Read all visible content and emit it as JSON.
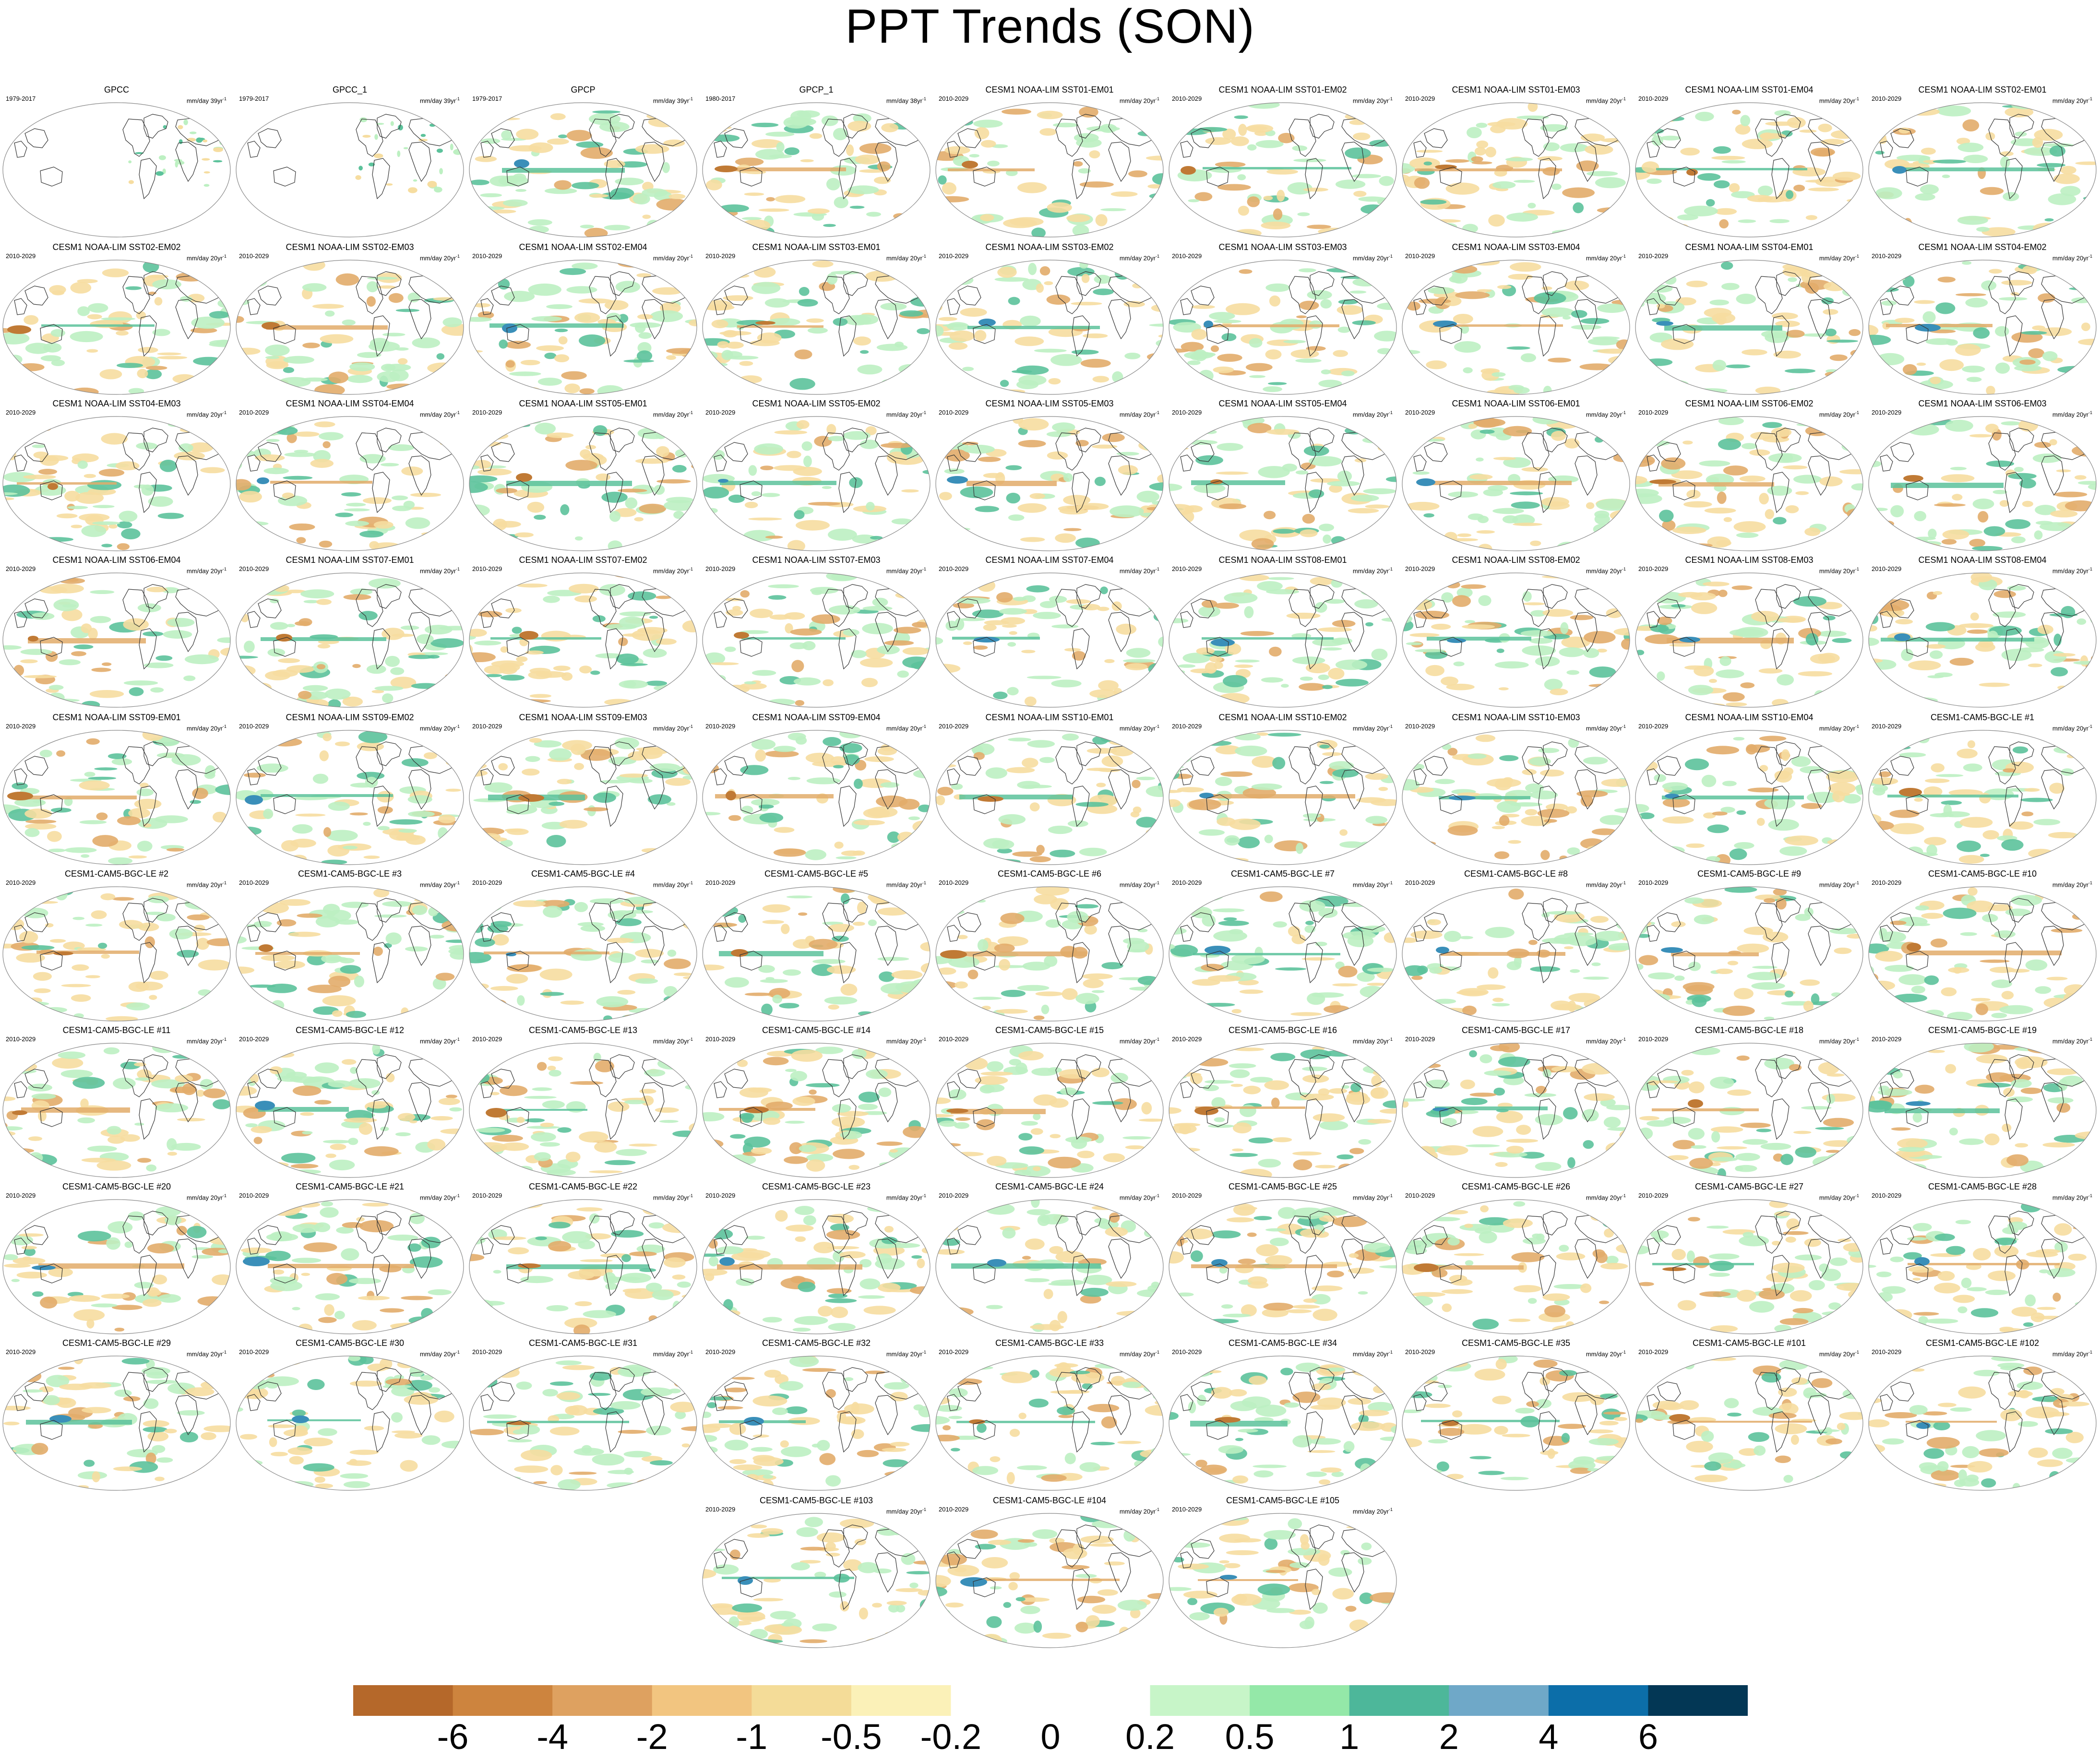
{
  "title": "PPT Trends (SON)",
  "chart_data": {
    "type": "map-panels",
    "variable": "precipitation trend",
    "season": "SON",
    "panels": [
      {
        "title": "GPCC",
        "period": "1979-2017",
        "units": "mm/day 39yr",
        "units_exp": "-1",
        "land_only": true
      },
      {
        "title": "GPCC_1",
        "period": "1979-2017",
        "units": "mm/day 39yr",
        "units_exp": "-1",
        "land_only": true
      },
      {
        "title": "GPCP",
        "period": "1979-2017",
        "units": "mm/day 39yr",
        "units_exp": "-1"
      },
      {
        "title": "GPCP_1",
        "period": "1980-2017",
        "units": "mm/day 38yr",
        "units_exp": "-1"
      },
      {
        "title": "CESM1 NOAA-LIM SST01-EM01",
        "period": "2010-2029",
        "units": "mm/day 20yr",
        "units_exp": "-1"
      },
      {
        "title": "CESM1 NOAA-LIM SST01-EM02",
        "period": "2010-2029",
        "units": "mm/day 20yr",
        "units_exp": "-1"
      },
      {
        "title": "CESM1 NOAA-LIM SST01-EM03",
        "period": "2010-2029",
        "units": "mm/day 20yr",
        "units_exp": "-1"
      },
      {
        "title": "CESM1 NOAA-LIM SST01-EM04",
        "period": "2010-2029",
        "units": "mm/day 20yr",
        "units_exp": "-1"
      },
      {
        "title": "CESM1 NOAA-LIM SST02-EM01",
        "period": "2010-2029",
        "units": "mm/day 20yr",
        "units_exp": "-1"
      },
      {
        "title": "CESM1 NOAA-LIM SST02-EM02",
        "period": "2010-2029",
        "units": "mm/day 20yr",
        "units_exp": "-1"
      },
      {
        "title": "CESM1 NOAA-LIM SST02-EM03",
        "period": "2010-2029",
        "units": "mm/day 20yr",
        "units_exp": "-1"
      },
      {
        "title": "CESM1 NOAA-LIM SST02-EM04",
        "period": "2010-2029",
        "units": "mm/day 20yr",
        "units_exp": "-1"
      },
      {
        "title": "CESM1 NOAA-LIM SST03-EM01",
        "period": "2010-2029",
        "units": "mm/day 20yr",
        "units_exp": "-1"
      },
      {
        "title": "CESM1 NOAA-LIM SST03-EM02",
        "period": "2010-2029",
        "units": "mm/day 20yr",
        "units_exp": "-1"
      },
      {
        "title": "CESM1 NOAA-LIM SST03-EM03",
        "period": "2010-2029",
        "units": "mm/day 20yr",
        "units_exp": "-1"
      },
      {
        "title": "CESM1 NOAA-LIM SST03-EM04",
        "period": "2010-2029",
        "units": "mm/day 20yr",
        "units_exp": "-1"
      },
      {
        "title": "CESM1 NOAA-LIM SST04-EM01",
        "period": "2010-2029",
        "units": "mm/day 20yr",
        "units_exp": "-1"
      },
      {
        "title": "CESM1 NOAA-LIM SST04-EM02",
        "period": "2010-2029",
        "units": "mm/day 20yr",
        "units_exp": "-1"
      },
      {
        "title": "CESM1 NOAA-LIM SST04-EM03",
        "period": "2010-2029",
        "units": "mm/day 20yr",
        "units_exp": "-1"
      },
      {
        "title": "CESM1 NOAA-LIM SST04-EM04",
        "period": "2010-2029",
        "units": "mm/day 20yr",
        "units_exp": "-1"
      },
      {
        "title": "CESM1 NOAA-LIM SST05-EM01",
        "period": "2010-2029",
        "units": "mm/day 20yr",
        "units_exp": "-1"
      },
      {
        "title": "CESM1 NOAA-LIM SST05-EM02",
        "period": "2010-2029",
        "units": "mm/day 20yr",
        "units_exp": "-1"
      },
      {
        "title": "CESM1 NOAA-LIM SST05-EM03",
        "period": "2010-2029",
        "units": "mm/day 20yr",
        "units_exp": "-1"
      },
      {
        "title": "CESM1 NOAA-LIM SST05-EM04",
        "period": "2010-2029",
        "units": "mm/day 20yr",
        "units_exp": "-1"
      },
      {
        "title": "CESM1 NOAA-LIM SST06-EM01",
        "period": "2010-2029",
        "units": "mm/day 20yr",
        "units_exp": "-1"
      },
      {
        "title": "CESM1 NOAA-LIM SST06-EM02",
        "period": "2010-2029",
        "units": "mm/day 20yr",
        "units_exp": "-1"
      },
      {
        "title": "CESM1 NOAA-LIM SST06-EM03",
        "period": "2010-2029",
        "units": "mm/day 20yr",
        "units_exp": "-1"
      },
      {
        "title": "CESM1 NOAA-LIM SST06-EM04",
        "period": "2010-2029",
        "units": "mm/day 20yr",
        "units_exp": "-1"
      },
      {
        "title": "CESM1 NOAA-LIM SST07-EM01",
        "period": "2010-2029",
        "units": "mm/day 20yr",
        "units_exp": "-1"
      },
      {
        "title": "CESM1 NOAA-LIM SST07-EM02",
        "period": "2010-2029",
        "units": "mm/day 20yr",
        "units_exp": "-1"
      },
      {
        "title": "CESM1 NOAA-LIM SST07-EM03",
        "period": "2010-2029",
        "units": "mm/day 20yr",
        "units_exp": "-1"
      },
      {
        "title": "CESM1 NOAA-LIM SST07-EM04",
        "period": "2010-2029",
        "units": "mm/day 20yr",
        "units_exp": "-1"
      },
      {
        "title": "CESM1 NOAA-LIM SST08-EM01",
        "period": "2010-2029",
        "units": "mm/day 20yr",
        "units_exp": "-1"
      },
      {
        "title": "CESM1 NOAA-LIM SST08-EM02",
        "period": "2010-2029",
        "units": "mm/day 20yr",
        "units_exp": "-1"
      },
      {
        "title": "CESM1 NOAA-LIM SST08-EM03",
        "period": "2010-2029",
        "units": "mm/day 20yr",
        "units_exp": "-1"
      },
      {
        "title": "CESM1 NOAA-LIM SST08-EM04",
        "period": "2010-2029",
        "units": "mm/day 20yr",
        "units_exp": "-1"
      },
      {
        "title": "CESM1 NOAA-LIM SST09-EM01",
        "period": "2010-2029",
        "units": "mm/day 20yr",
        "units_exp": "-1"
      },
      {
        "title": "CESM1 NOAA-LIM SST09-EM02",
        "period": "2010-2029",
        "units": "mm/day 20yr",
        "units_exp": "-1"
      },
      {
        "title": "CESM1 NOAA-LIM SST09-EM03",
        "period": "2010-2029",
        "units": "mm/day 20yr",
        "units_exp": "-1"
      },
      {
        "title": "CESM1 NOAA-LIM SST09-EM04",
        "period": "2010-2029",
        "units": "mm/day 20yr",
        "units_exp": "-1"
      },
      {
        "title": "CESM1 NOAA-LIM SST10-EM01",
        "period": "2010-2029",
        "units": "mm/day 20yr",
        "units_exp": "-1"
      },
      {
        "title": "CESM1 NOAA-LIM SST10-EM02",
        "period": "2010-2029",
        "units": "mm/day 20yr",
        "units_exp": "-1"
      },
      {
        "title": "CESM1 NOAA-LIM SST10-EM03",
        "period": "2010-2029",
        "units": "mm/day 20yr",
        "units_exp": "-1"
      },
      {
        "title": "CESM1 NOAA-LIM SST10-EM04",
        "period": "2010-2029",
        "units": "mm/day 20yr",
        "units_exp": "-1"
      },
      {
        "title": "CESM1-CAM5-BGC-LE #1",
        "period": "2010-2029",
        "units": "mm/day 20yr",
        "units_exp": "-1"
      },
      {
        "title": "CESM1-CAM5-BGC-LE #2",
        "period": "2010-2029",
        "units": "mm/day 20yr",
        "units_exp": "-1"
      },
      {
        "title": "CESM1-CAM5-BGC-LE #3",
        "period": "2010-2029",
        "units": "mm/day 20yr",
        "units_exp": "-1"
      },
      {
        "title": "CESM1-CAM5-BGC-LE #4",
        "period": "2010-2029",
        "units": "mm/day 20yr",
        "units_exp": "-1"
      },
      {
        "title": "CESM1-CAM5-BGC-LE #5",
        "period": "2010-2029",
        "units": "mm/day 20yr",
        "units_exp": "-1"
      },
      {
        "title": "CESM1-CAM5-BGC-LE #6",
        "period": "2010-2029",
        "units": "mm/day 20yr",
        "units_exp": "-1"
      },
      {
        "title": "CESM1-CAM5-BGC-LE #7",
        "period": "2010-2029",
        "units": "mm/day 20yr",
        "units_exp": "-1"
      },
      {
        "title": "CESM1-CAM5-BGC-LE #8",
        "period": "2010-2029",
        "units": "mm/day 20yr",
        "units_exp": "-1"
      },
      {
        "title": "CESM1-CAM5-BGC-LE #9",
        "period": "2010-2029",
        "units": "mm/day 20yr",
        "units_exp": "-1"
      },
      {
        "title": "CESM1-CAM5-BGC-LE #10",
        "period": "2010-2029",
        "units": "mm/day 20yr",
        "units_exp": "-1"
      },
      {
        "title": "CESM1-CAM5-BGC-LE #11",
        "period": "2010-2029",
        "units": "mm/day 20yr",
        "units_exp": "-1"
      },
      {
        "title": "CESM1-CAM5-BGC-LE #12",
        "period": "2010-2029",
        "units": "mm/day 20yr",
        "units_exp": "-1"
      },
      {
        "title": "CESM1-CAM5-BGC-LE #13",
        "period": "2010-2029",
        "units": "mm/day 20yr",
        "units_exp": "-1"
      },
      {
        "title": "CESM1-CAM5-BGC-LE #14",
        "period": "2010-2029",
        "units": "mm/day 20yr",
        "units_exp": "-1"
      },
      {
        "title": "CESM1-CAM5-BGC-LE #15",
        "period": "2010-2029",
        "units": "mm/day 20yr",
        "units_exp": "-1"
      },
      {
        "title": "CESM1-CAM5-BGC-LE #16",
        "period": "2010-2029",
        "units": "mm/day 20yr",
        "units_exp": "-1"
      },
      {
        "title": "CESM1-CAM5-BGC-LE #17",
        "period": "2010-2029",
        "units": "mm/day 20yr",
        "units_exp": "-1"
      },
      {
        "title": "CESM1-CAM5-BGC-LE #18",
        "period": "2010-2029",
        "units": "mm/day 20yr",
        "units_exp": "-1"
      },
      {
        "title": "CESM1-CAM5-BGC-LE #19",
        "period": "2010-2029",
        "units": "mm/day 20yr",
        "units_exp": "-1"
      },
      {
        "title": "CESM1-CAM5-BGC-LE #20",
        "period": "2010-2029",
        "units": "mm/day 20yr",
        "units_exp": "-1"
      },
      {
        "title": "CESM1-CAM5-BGC-LE #21",
        "period": "2010-2029",
        "units": "mm/day 20yr",
        "units_exp": "-1"
      },
      {
        "title": "CESM1-CAM5-BGC-LE #22",
        "period": "2010-2029",
        "units": "mm/day 20yr",
        "units_exp": "-1"
      },
      {
        "title": "CESM1-CAM5-BGC-LE #23",
        "period": "2010-2029",
        "units": "mm/day 20yr",
        "units_exp": "-1"
      },
      {
        "title": "CESM1-CAM5-BGC-LE #24",
        "period": "2010-2029",
        "units": "mm/day 20yr",
        "units_exp": "-1"
      },
      {
        "title": "CESM1-CAM5-BGC-LE #25",
        "period": "2010-2029",
        "units": "mm/day 20yr",
        "units_exp": "-1"
      },
      {
        "title": "CESM1-CAM5-BGC-LE #26",
        "period": "2010-2029",
        "units": "mm/day 20yr",
        "units_exp": "-1"
      },
      {
        "title": "CESM1-CAM5-BGC-LE #27",
        "period": "2010-2029",
        "units": "mm/day 20yr",
        "units_exp": "-1"
      },
      {
        "title": "CESM1-CAM5-BGC-LE #28",
        "period": "2010-2029",
        "units": "mm/day 20yr",
        "units_exp": "-1"
      },
      {
        "title": "CESM1-CAM5-BGC-LE #29",
        "period": "2010-2029",
        "units": "mm/day 20yr",
        "units_exp": "-1"
      },
      {
        "title": "CESM1-CAM5-BGC-LE #30",
        "period": "2010-2029",
        "units": "mm/day 20yr",
        "units_exp": "-1"
      },
      {
        "title": "CESM1-CAM5-BGC-LE #31",
        "period": "2010-2029",
        "units": "mm/day 20yr",
        "units_exp": "-1"
      },
      {
        "title": "CESM1-CAM5-BGC-LE #32",
        "period": "2010-2029",
        "units": "mm/day 20yr",
        "units_exp": "-1"
      },
      {
        "title": "CESM1-CAM5-BGC-LE #33",
        "period": "2010-2029",
        "units": "mm/day 20yr",
        "units_exp": "-1"
      },
      {
        "title": "CESM1-CAM5-BGC-LE #34",
        "period": "2010-2029",
        "units": "mm/day 20yr",
        "units_exp": "-1"
      },
      {
        "title": "CESM1-CAM5-BGC-LE #35",
        "period": "2010-2029",
        "units": "mm/day 20yr",
        "units_exp": "-1"
      },
      {
        "title": "CESM1-CAM5-BGC-LE #101",
        "period": "2010-2029",
        "units": "mm/day 20yr",
        "units_exp": "-1"
      },
      {
        "title": "CESM1-CAM5-BGC-LE #102",
        "period": "2010-2029",
        "units": "mm/day 20yr",
        "units_exp": "-1"
      },
      {
        "title": "CESM1-CAM5-BGC-LE #103",
        "period": "2010-2029",
        "units": "mm/day 20yr",
        "units_exp": "-1"
      },
      {
        "title": "CESM1-CAM5-BGC-LE #104",
        "period": "2010-2029",
        "units": "mm/day 20yr",
        "units_exp": "-1"
      },
      {
        "title": "CESM1-CAM5-BGC-LE #105",
        "period": "2010-2029",
        "units": "mm/day 20yr",
        "units_exp": "-1"
      }
    ],
    "colorbar": {
      "labels": [
        "-6",
        "-4",
        "-2",
        "-1",
        "-0.5",
        "-0.2",
        "0",
        "0.2",
        "0.5",
        "1",
        "2",
        "4",
        "6"
      ],
      "colors": [
        "#b5682a",
        "#cd843e",
        "#dea160",
        "#f2c580",
        "#f4dc98",
        "#fbf1b8",
        "#ffffff",
        "#ffffff",
        "#c7f5c8",
        "#94e8a8",
        "#4db79a",
        "#6fa8c8",
        "#0c6ea9",
        "#033755"
      ]
    },
    "palette": {
      "dry_strong": "#c07a35",
      "dry": "#e2ac6a",
      "dry_light": "#f6dda0",
      "wet_light": "#bdf0c2",
      "wet": "#5cc29b",
      "wet_strong": "#3a8fb9",
      "wet_extreme": "#0b4f7a",
      "coast": "#333333",
      "border": "#888888"
    }
  }
}
